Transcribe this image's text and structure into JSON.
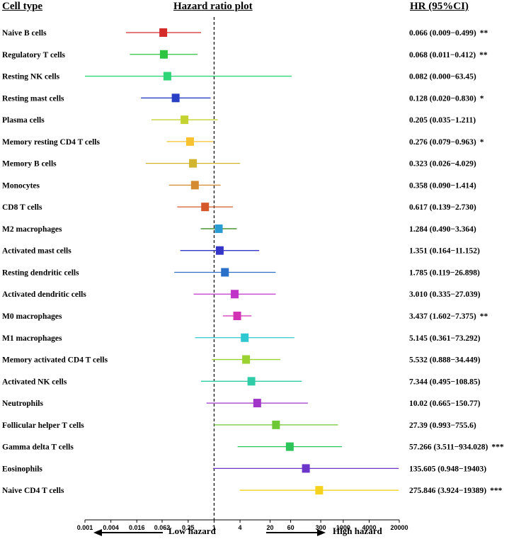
{
  "headers": {
    "cell_type": "Cell type",
    "plot": "Hazard ratio plot",
    "hr": "HR (95%CI)"
  },
  "chart_data": {
    "type": "forest",
    "title": "Hazard ratio plot",
    "xscale": "log",
    "xlim": [
      0.001,
      20000
    ],
    "reference_line": 1,
    "xticks": [
      "0.001",
      "0.004",
      "0.016",
      "0.062",
      "0.25",
      "1",
      "4",
      "20",
      "60",
      "300",
      "1000",
      "4000",
      "20000"
    ],
    "arrow_labels": {
      "low": "Low hazard",
      "high": "High hazard"
    },
    "rows": [
      {
        "label": "Naive B cells",
        "hr": 0.066,
        "lower": 0.009,
        "upper": 0.499,
        "ci_text": "0.066 (0.009−0.499)",
        "sig": "**",
        "color": "#d42a2a"
      },
      {
        "label": "Regulatory T cells",
        "hr": 0.068,
        "lower": 0.011,
        "upper": 0.412,
        "ci_text": "0.068 (0.011−0.412)",
        "sig": "**",
        "color": "#2ec440"
      },
      {
        "label": "Resting NK cells",
        "hr": 0.082,
        "lower": 0.0,
        "upper": 63.45,
        "ci_text": "0.082 (0.000−63.45)",
        "sig": "",
        "color": "#2ed677"
      },
      {
        "label": "Resting mast cells",
        "hr": 0.128,
        "lower": 0.02,
        "upper": 0.83,
        "ci_text": "0.128 (0.020−0.830)",
        "sig": "*",
        "color": "#2a40c4"
      },
      {
        "label": "Plasma cells",
        "hr": 0.205,
        "lower": 0.035,
        "upper": 1.211,
        "ci_text": "0.205 (0.035−1.211)",
        "sig": "",
        "color": "#c4d232"
      },
      {
        "label": "Memory resting CD4 T cells",
        "hr": 0.276,
        "lower": 0.079,
        "upper": 0.963,
        "ci_text": "0.276 (0.079−0.963)",
        "sig": "*",
        "color": "#f7c230"
      },
      {
        "label": "Memory B cells",
        "hr": 0.323,
        "lower": 0.026,
        "upper": 4.029,
        "ci_text": "0.323 (0.026−4.029)",
        "sig": "",
        "color": "#d2b42e"
      },
      {
        "label": "Monocytes",
        "hr": 0.358,
        "lower": 0.09,
        "upper": 1.414,
        "ci_text": "0.358 (0.090−1.414)",
        "sig": "",
        "color": "#d48a30"
      },
      {
        "label": "CD8 T cells",
        "hr": 0.617,
        "lower": 0.139,
        "upper": 2.73,
        "ci_text": "0.617 (0.139−2.730)",
        "sig": "",
        "color": "#d4582a"
      },
      {
        "label": "M2 macrophages",
        "hr": 1.284,
        "lower": 0.49,
        "upper": 3.364,
        "ci_text": "1.284 (0.490−3.364)",
        "sig": "",
        "color": "#2a9cd4",
        "line_color": "#3c8c1e"
      },
      {
        "label": "Activated mast cells",
        "hr": 1.351,
        "lower": 0.164,
        "upper": 11.152,
        "ci_text": "1.351 (0.164−11.152)",
        "sig": "",
        "color": "#3535c8"
      },
      {
        "label": "Resting dendritic cells",
        "hr": 1.785,
        "lower": 0.119,
        "upper": 26.898,
        "ci_text": "1.785 (0.119−26.898)",
        "sig": "",
        "color": "#2a70c8"
      },
      {
        "label": "Activated dendritic cells",
        "hr": 3.01,
        "lower": 0.335,
        "upper": 27.039,
        "ci_text": "3.010 (0.335−27.039)",
        "sig": "",
        "color": "#c035c8"
      },
      {
        "label": "M0 macrophages",
        "hr": 3.437,
        "lower": 1.602,
        "upper": 7.375,
        "ci_text": "3.437 (1.602−7.375)",
        "sig": "**",
        "color": "#d232b4"
      },
      {
        "label": "M1 macrophages",
        "hr": 5.145,
        "lower": 0.361,
        "upper": 73.292,
        "ci_text": "5.145 (0.361−73.292)",
        "sig": "",
        "color": "#30c8d0"
      },
      {
        "label": "Memory activated CD4 T cells",
        "hr": 5.532,
        "lower": 0.888,
        "upper": 34.449,
        "ci_text": "5.532 (0.888−34.449)",
        "sig": "",
        "color": "#9ad232"
      },
      {
        "label": "Activated NK cells",
        "hr": 7.344,
        "lower": 0.495,
        "upper": 108.85,
        "ci_text": "7.344 (0.495−108.85)",
        "sig": "",
        "color": "#30cca8"
      },
      {
        "label": "Neutrophils",
        "hr": 10.02,
        "lower": 0.665,
        "upper": 150.77,
        "ci_text": "10.02 (0.665−150.77)",
        "sig": "",
        "color": "#a035c8"
      },
      {
        "label": "Follicular helper T cells",
        "hr": 27.39,
        "lower": 0.993,
        "upper": 755.6,
        "ci_text": "27.39 (0.993−755.6)",
        "sig": "",
        "color": "#6cc835"
      },
      {
        "label": "Gamma delta T cells",
        "hr": 57.266,
        "lower": 3.511,
        "upper": 934.028,
        "ci_text": "57.266 (3.511−934.028)",
        "sig": "***",
        "color": "#2ec45a"
      },
      {
        "label": "Eosinophils",
        "hr": 135.605,
        "lower": 0.948,
        "upper": 19403,
        "ci_text": "135.605 (0.948−19403)",
        "sig": "",
        "color": "#6a35c8"
      },
      {
        "label": "Naive CD4 T cells",
        "hr": 275.846,
        "lower": 3.924,
        "upper": 19389,
        "ci_text": "275.846 (3.924−19389)",
        "sig": "***",
        "color": "#f5d21e"
      }
    ]
  }
}
